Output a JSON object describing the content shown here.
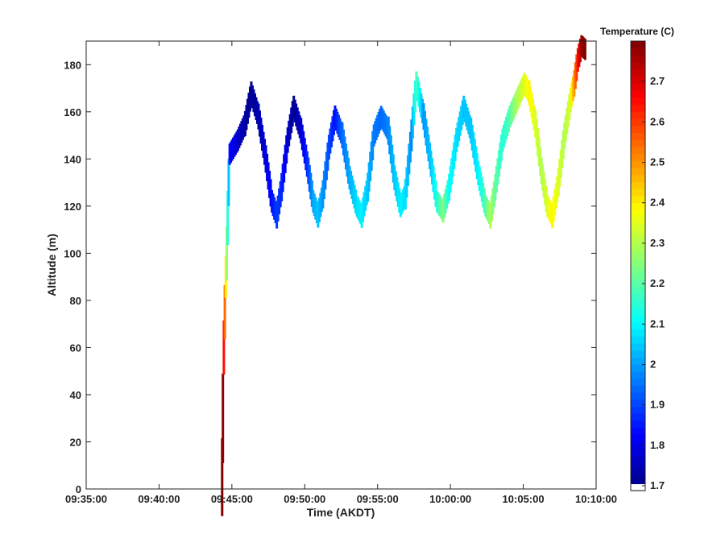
{
  "chart_data": {
    "type": "heatmap",
    "title": "",
    "xlabel": "Time (AKDT)",
    "ylabel": "Altitude (m)",
    "xlim": [
      "09:35:00",
      "10:10:00"
    ],
    "ylim": [
      0,
      190
    ],
    "x_ticks": [
      "09:35:00",
      "09:40:00",
      "09:45:00",
      "09:50:00",
      "09:55:00",
      "10:00:00",
      "10:05:00",
      "10:10:00"
    ],
    "y_ticks": [
      0,
      20,
      40,
      60,
      80,
      100,
      120,
      140,
      160,
      180
    ],
    "colorbar": {
      "title": "Temperature (C)",
      "range": [
        1.7,
        2.8
      ],
      "ticks": [
        1.7,
        1.8,
        1.9,
        2,
        2.1,
        2.2,
        2.3,
        2.4,
        2.5,
        2.6,
        2.7
      ],
      "colormap": "jet"
    },
    "profile": {
      "description_units": "time (HH:MM:SS AKDT), altitude (m), temperature (C)",
      "points": [
        [
          "09:44:15",
          5,
          2.8
        ],
        [
          "09:44:18",
          30,
          2.78
        ],
        [
          "09:44:22",
          60,
          2.65
        ],
        [
          "09:44:26",
          75,
          2.55
        ],
        [
          "09:44:30",
          90,
          2.4
        ],
        [
          "09:44:34",
          100,
          2.28
        ],
        [
          "09:44:38",
          115,
          2.15
        ],
        [
          "09:44:42",
          130,
          2.05
        ],
        [
          "09:44:46",
          142,
          1.85
        ],
        [
          "09:45:20",
          148,
          1.78
        ],
        [
          "09:45:50",
          155,
          1.74
        ],
        [
          "09:46:15",
          168,
          1.72
        ],
        [
          "09:46:45",
          158,
          1.75
        ],
        [
          "09:47:15",
          140,
          1.8
        ],
        [
          "09:47:40",
          122,
          1.85
        ],
        [
          "09:48:00",
          116,
          1.9
        ],
        [
          "09:48:20",
          128,
          1.88
        ],
        [
          "09:48:45",
          148,
          1.78
        ],
        [
          "09:49:10",
          162,
          1.72
        ],
        [
          "09:49:40",
          152,
          1.78
        ],
        [
          "09:50:10",
          135,
          1.9
        ],
        [
          "09:50:30",
          122,
          2.02
        ],
        [
          "09:50:50",
          116,
          2.05
        ],
        [
          "09:51:10",
          125,
          2.0
        ],
        [
          "09:51:35",
          145,
          1.92
        ],
        [
          "09:52:00",
          158,
          1.85
        ],
        [
          "09:52:30",
          150,
          1.95
        ],
        [
          "09:53:00",
          132,
          2.02
        ],
        [
          "09:53:30",
          120,
          2.08
        ],
        [
          "09:53:50",
          116,
          2.1
        ],
        [
          "09:54:15",
          128,
          2.05
        ],
        [
          "09:54:40",
          150,
          1.97
        ],
        [
          "09:55:10",
          158,
          1.95
        ],
        [
          "09:55:40",
          152,
          1.98
        ],
        [
          "09:56:05",
          132,
          2.05
        ],
        [
          "09:56:30",
          120,
          2.1
        ],
        [
          "09:56:50",
          125,
          2.08
        ],
        [
          "09:57:15",
          150,
          1.98
        ],
        [
          "09:57:35",
          172,
          2.2
        ],
        [
          "09:58:05",
          158,
          2.0
        ],
        [
          "09:58:35",
          138,
          2.05
        ],
        [
          "09:59:00",
          122,
          2.15
        ],
        [
          "09:59:25",
          118,
          2.25
        ],
        [
          "09:59:50",
          128,
          2.12
        ],
        [
          "10:00:20",
          148,
          2.08
        ],
        [
          "10:00:50",
          162,
          2.05
        ],
        [
          "10:01:20",
          152,
          2.05
        ],
        [
          "10:01:50",
          134,
          2.1
        ],
        [
          "10:02:20",
          120,
          2.2
        ],
        [
          "10:02:40",
          116,
          2.3
        ],
        [
          "10:03:00",
          128,
          2.22
        ],
        [
          "10:03:30",
          148,
          2.15
        ],
        [
          "10:04:00",
          158,
          2.2
        ],
        [
          "10:04:30",
          165,
          2.3
        ],
        [
          "10:05:00",
          172,
          2.35
        ],
        [
          "10:05:20",
          168,
          2.4
        ],
        [
          "10:05:45",
          155,
          2.35
        ],
        [
          "10:06:10",
          135,
          2.3
        ],
        [
          "10:06:35",
          120,
          2.35
        ],
        [
          "10:06:55",
          116,
          2.4
        ],
        [
          "10:07:20",
          130,
          2.35
        ],
        [
          "10:07:45",
          150,
          2.3
        ],
        [
          "10:08:10",
          165,
          2.35
        ],
        [
          "10:08:25",
          172,
          2.5
        ],
        [
          "10:08:40",
          182,
          2.65
        ],
        [
          "10:08:55",
          188,
          2.78
        ],
        [
          "10:09:15",
          186,
          2.8
        ]
      ]
    }
  }
}
